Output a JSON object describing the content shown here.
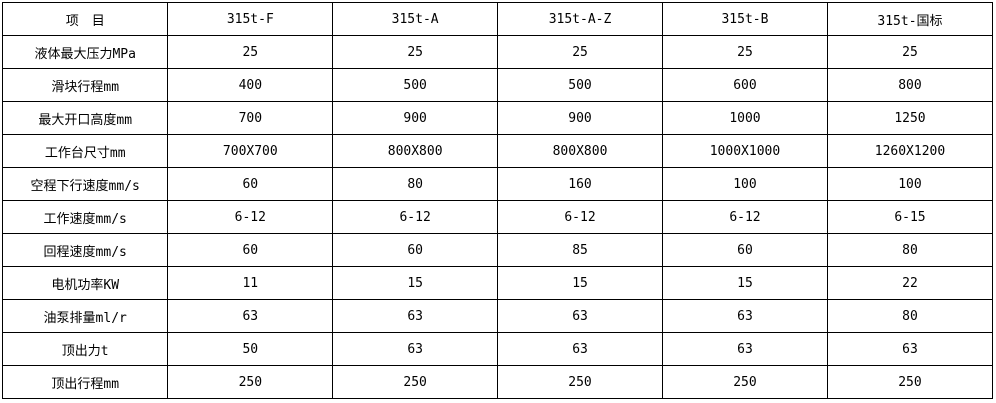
{
  "header": [
    "项　目",
    "315t-F",
    "315t-A",
    "315t-A-Z",
    "315t-B",
    "315t-国标"
  ],
  "rows": [
    [
      "液体最大压力MPa",
      "25",
      "25",
      "25",
      "25",
      "25"
    ],
    [
      "滑块行程mm",
      "400",
      "500",
      "500",
      "600",
      "800"
    ],
    [
      "最大开口高度mm",
      "700",
      "900",
      "900",
      "1000",
      "1250"
    ],
    [
      "工作台尺寸mm",
      "700X700",
      "800X800",
      "800X800",
      "1000X1000",
      "1260X1200"
    ],
    [
      "空程下行速度mm/s",
      "60",
      "80",
      "160",
      "100",
      "100"
    ],
    [
      "工作速度mm/s",
      "6-12",
      "6-12",
      "6-12",
      "6-12",
      "6-15"
    ],
    [
      "回程速度mm/s",
      "60",
      "60",
      "85",
      "60",
      "80"
    ],
    [
      "电机功率KW",
      "11",
      "15",
      "15",
      "15",
      "22"
    ],
    [
      "油泵排量ml/r",
      "63",
      "63",
      "63",
      "63",
      "80"
    ],
    [
      "顶出力t",
      "50",
      "63",
      "63",
      "63",
      "63"
    ],
    [
      "顶出行程mm",
      "250",
      "250",
      "250",
      "250",
      "250"
    ]
  ]
}
